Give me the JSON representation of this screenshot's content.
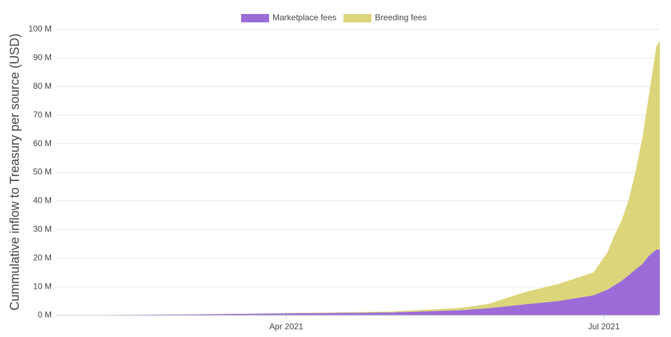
{
  "chart_data": {
    "type": "stacked_area",
    "y_label": "Cummulative inflow to Treasury per source (USD)",
    "x": [
      24,
      60,
      90,
      120,
      140,
      148,
      158,
      168,
      178,
      182,
      184,
      186,
      188,
      190,
      192,
      194,
      196,
      197
    ],
    "series": [
      {
        "name": "Marketplace fees",
        "color": "#9b6cd8",
        "values": [
          0,
          0.3,
          0.7,
          1.0,
          1.8,
          2.5,
          3.8,
          5,
          7,
          9,
          10.5,
          12,
          14,
          16,
          18,
          21,
          23,
          23
        ]
      },
      {
        "name": "Breeding fees",
        "color": "#dcd57a",
        "values": [
          0,
          0,
          0.1,
          0.3,
          0.8,
          1.5,
          4.2,
          6,
          8,
          13,
          17.5,
          21,
          26,
          34,
          44,
          57,
          71,
          73
        ]
      }
    ],
    "xlim": [
      24,
      197
    ],
    "xticks": [
      {
        "value": 90,
        "label": "Apr 2021"
      },
      {
        "value": 181,
        "label": "Jul 2021"
      }
    ],
    "ylim": [
      0,
      100
    ],
    "yticks": [
      {
        "value": 0,
        "label": "0 M"
      },
      {
        "value": 10,
        "label": "10 M"
      },
      {
        "value": 20,
        "label": "20 M"
      },
      {
        "value": 30,
        "label": "30 M"
      },
      {
        "value": 40,
        "label": "40 M"
      },
      {
        "value": 50,
        "label": "50 M"
      },
      {
        "value": 60,
        "label": "60 M"
      },
      {
        "value": 70,
        "label": "70 M"
      },
      {
        "value": 80,
        "label": "80 M"
      },
      {
        "value": 90,
        "label": "90 M"
      },
      {
        "value": 100,
        "label": "100 M"
      }
    ],
    "grid": true,
    "legend": "top"
  }
}
